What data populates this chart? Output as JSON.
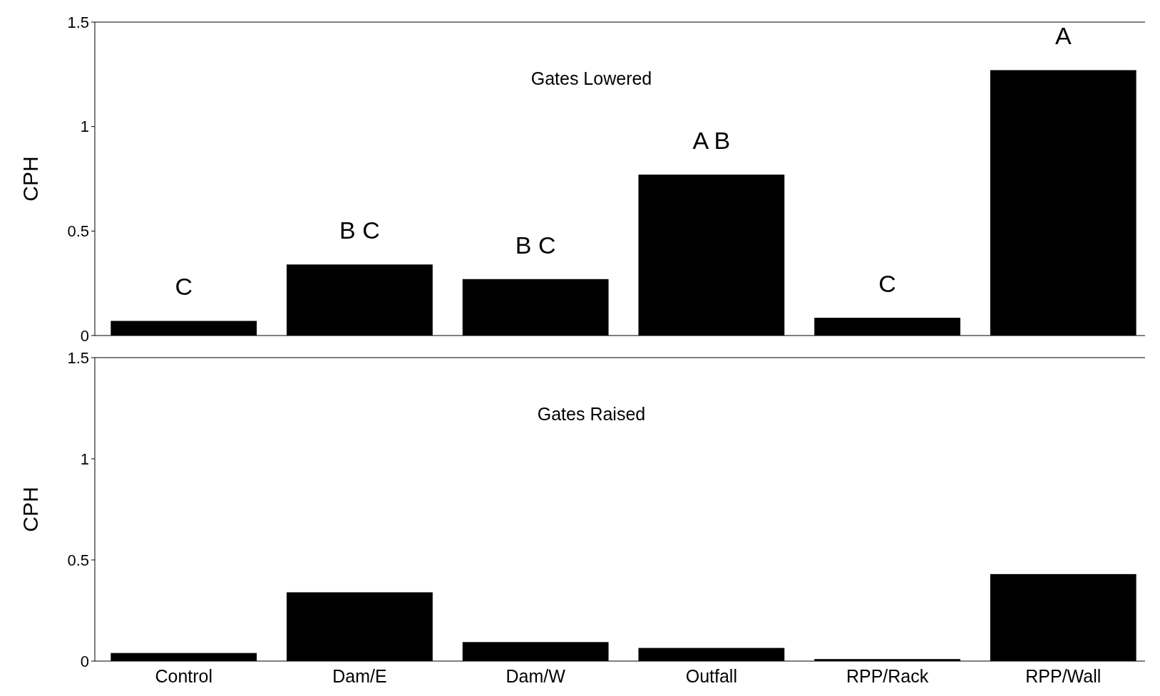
{
  "chart_data": [
    {
      "type": "bar",
      "title": "Gates Lowered",
      "ylabel": "CPH",
      "categories": [
        null,
        null,
        null,
        null,
        null,
        null
      ],
      "values": [
        0.07,
        0.34,
        0.27,
        0.77,
        0.085,
        1.27
      ],
      "color": "#000000",
      "ylim": [
        0,
        1.5
      ],
      "yticks": [
        0,
        0.5,
        1,
        1.5
      ],
      "tick_labels": "y",
      "annotations": [
        "C",
        "B C",
        "B C",
        "A B",
        "C",
        "A"
      ]
    },
    {
      "type": "bar",
      "title": "Gates Raised",
      "ylabel": "CPH",
      "categories": [
        "Control",
        "Dam/E",
        "Dam/W",
        "Outfall",
        "RPP/Rack",
        "RPP/Wall"
      ],
      "values": [
        0.04,
        0.34,
        0.094,
        0.065,
        0.01,
        0.43
      ],
      "color": "#000000",
      "ylim": [
        0,
        1.5
      ],
      "yticks": [
        0,
        0.5,
        1,
        1.5
      ]
    }
  ]
}
